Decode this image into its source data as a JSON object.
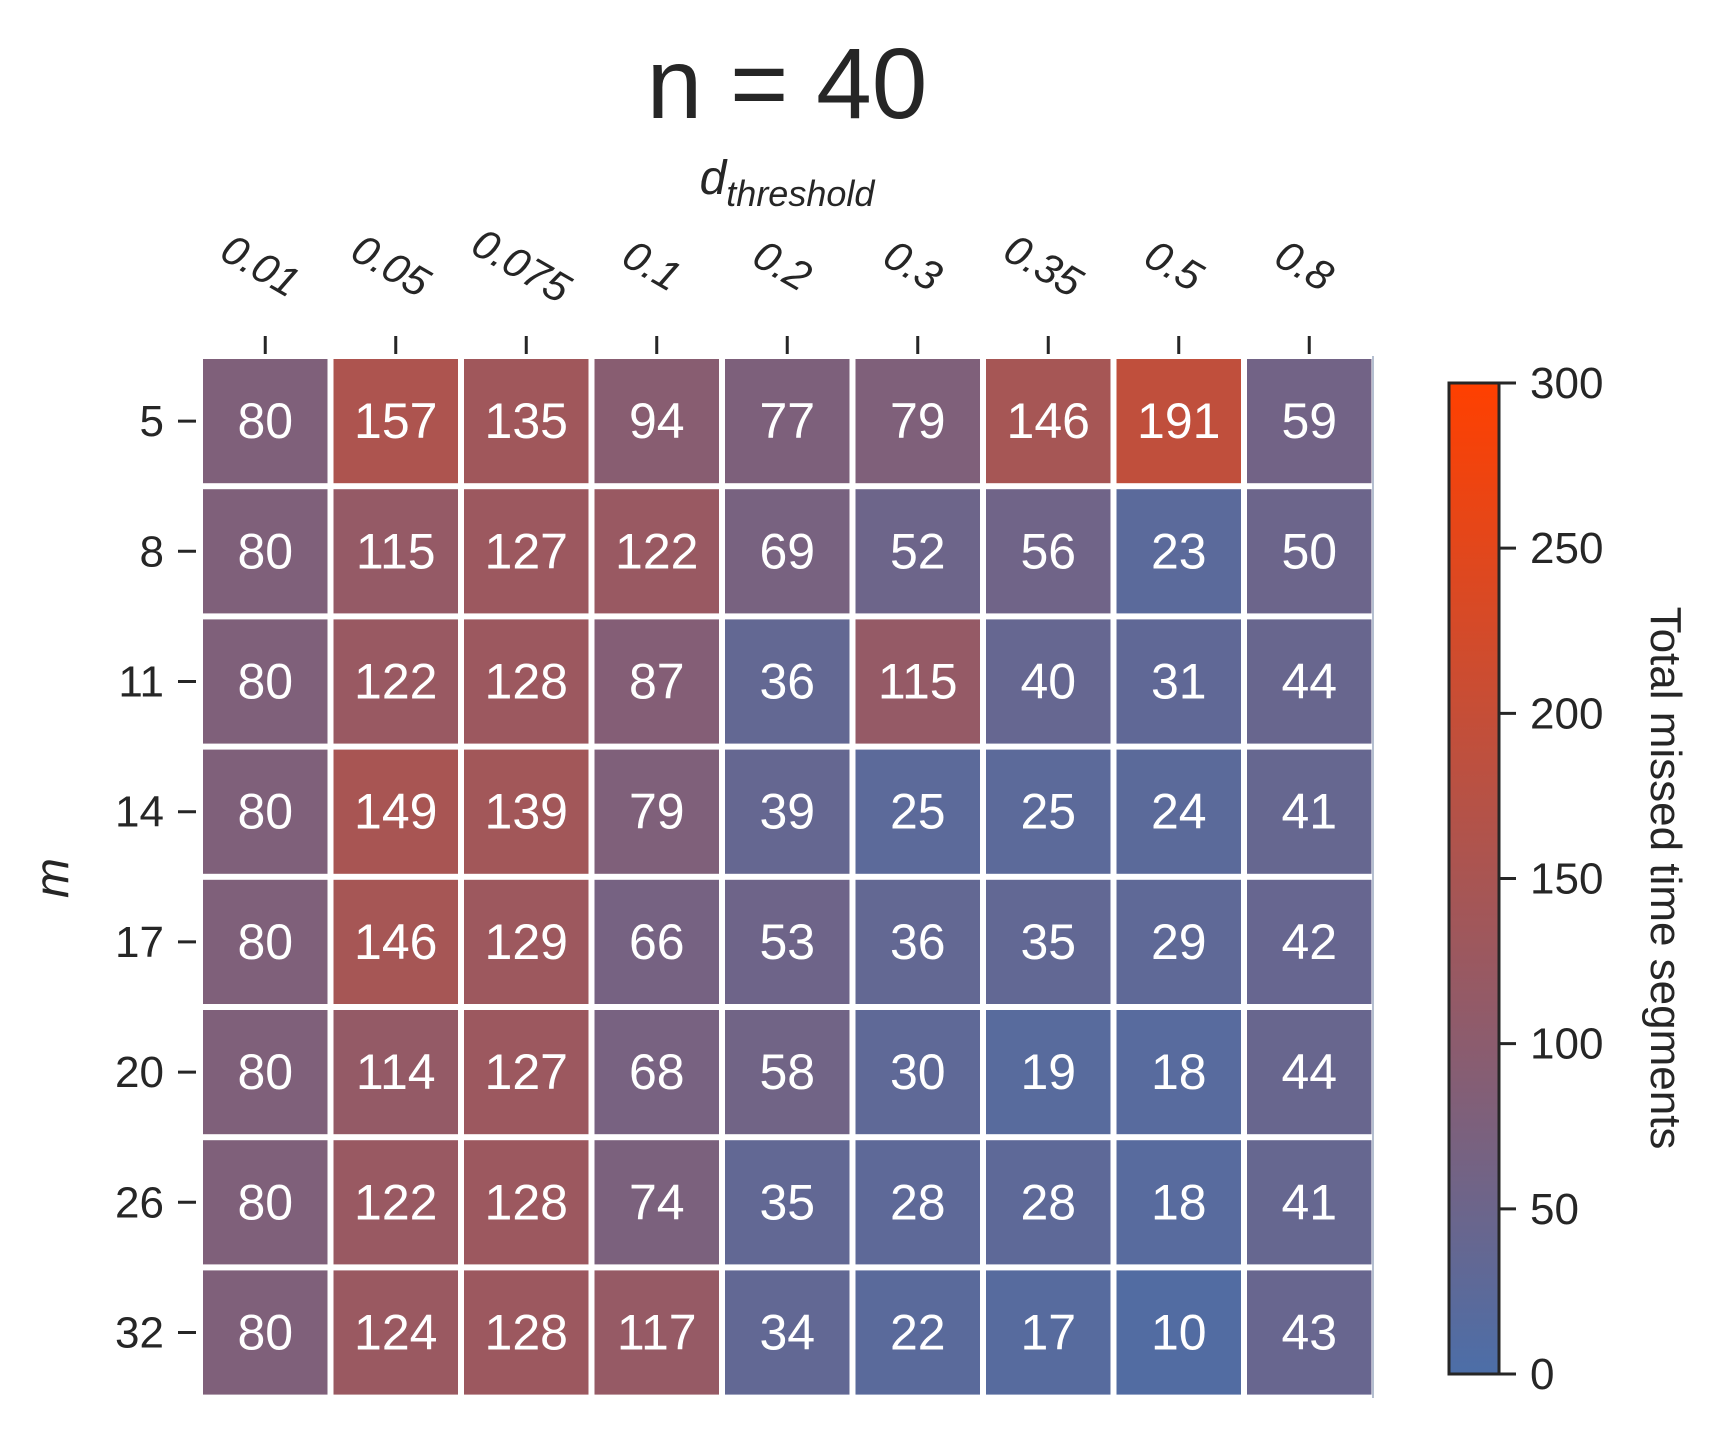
{
  "chart_data": {
    "type": "heatmap",
    "title": "n = 40",
    "xlabel_main": "d",
    "xlabel_sub": "threshold",
    "ylabel": "m",
    "colorbar_label": "Total missed time segments",
    "x": [
      "0.01",
      "0.05",
      "0.075",
      "0.1",
      "0.2",
      "0.3",
      "0.35",
      "0.5",
      "0.8"
    ],
    "y": [
      "5",
      "8",
      "11",
      "14",
      "17",
      "20",
      "26",
      "32"
    ],
    "values": [
      [
        80,
        157,
        135,
        94,
        77,
        79,
        146,
        191,
        59
      ],
      [
        80,
        115,
        127,
        122,
        69,
        52,
        56,
        23,
        50
      ],
      [
        80,
        122,
        128,
        87,
        36,
        115,
        40,
        31,
        44
      ],
      [
        80,
        149,
        139,
        79,
        39,
        25,
        25,
        24,
        41
      ],
      [
        80,
        146,
        129,
        66,
        53,
        36,
        35,
        29,
        42
      ],
      [
        80,
        114,
        127,
        68,
        58,
        30,
        19,
        18,
        44
      ],
      [
        80,
        122,
        128,
        74,
        35,
        28,
        28,
        18,
        41
      ],
      [
        80,
        124,
        128,
        117,
        34,
        22,
        17,
        10,
        43
      ]
    ],
    "vmin": 0,
    "vmax": 300,
    "colorbar_ticks": [
      "0",
      "50",
      "100",
      "150",
      "200",
      "250",
      "300"
    ],
    "colormap": {
      "low": "#4c6ea8",
      "mid": "#8c5c6e",
      "high": "#ff4000"
    },
    "x_axis_position": "top",
    "grid": false,
    "legend": "colorbar-right"
  }
}
